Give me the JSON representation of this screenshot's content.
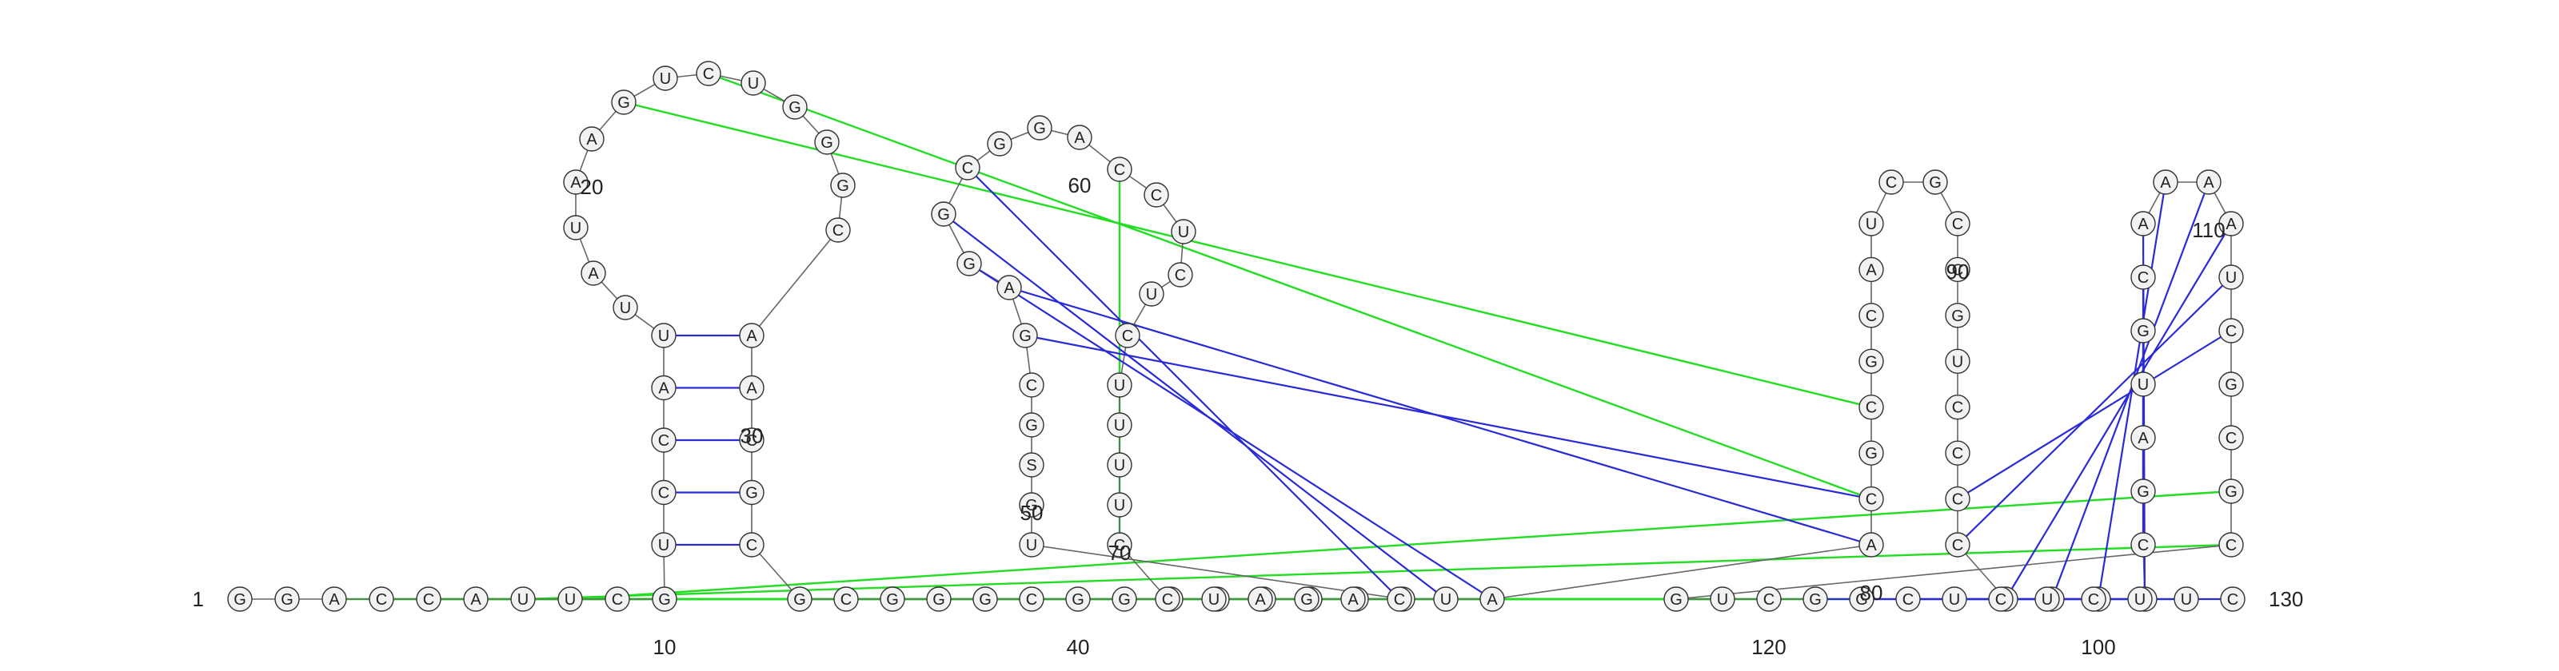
{
  "diagram": {
    "type": "rna-secondary-structure",
    "colors": {
      "nucleotide_fill": "#f2f2f2",
      "nucleotide_stroke": "#333333",
      "backbone": "#666666",
      "base_pair": "#2a2ad6",
      "pseudoknot": "#22dd22"
    },
    "sequence": [
      "G",
      "G",
      "A",
      "C",
      "C",
      "A",
      "U",
      "U",
      "C",
      "G",
      "U",
      "C",
      "C",
      "A",
      "U",
      "U",
      "A",
      "U",
      "A",
      "A",
      "G",
      "U",
      "C",
      "U",
      "G",
      "G",
      "G",
      "C",
      "A",
      "A",
      "C",
      "G",
      "C",
      "G",
      "C",
      "G",
      "G",
      "G",
      "C",
      "G",
      "G",
      "C",
      "C",
      "A",
      "G",
      "G",
      "G",
      "U",
      "G",
      "S",
      "G",
      "C",
      "G",
      "A",
      "G",
      "G",
      "C",
      "G",
      "G",
      "A",
      "C",
      "C",
      "U",
      "C",
      "U",
      "C",
      "U",
      "U",
      "U",
      "U",
      "C",
      "C",
      "U",
      "A",
      "G",
      "A",
      "C",
      "U",
      "A",
      "A",
      "C",
      "G",
      "C",
      "G",
      "C",
      "A",
      "U",
      "C",
      "G",
      "C",
      "C",
      "G",
      "U",
      "C",
      "C",
      "C",
      "C",
      "C",
      "G",
      "G",
      "C",
      "C",
      "G",
      "A",
      "U",
      "G",
      "C",
      "A",
      "A",
      "A",
      "A",
      "U",
      "C",
      "G",
      "C",
      "G",
      "C",
      "G",
      "U",
      "C",
      "G",
      "G",
      "C",
      "U",
      "C",
      "U",
      "C",
      "U",
      "U",
      "C"
    ],
    "position_labels": [
      "1",
      "10",
      "20",
      "30",
      "40",
      "50",
      "60",
      "70",
      "80",
      "90",
      "100",
      "110",
      "120",
      "130"
    ],
    "base_pairs": [
      {
        "i": 10,
        "j": 11,
        "type": "wobble"
      },
      {
        "i": 14,
        "j": 15,
        "type": "canonical"
      },
      {
        "i": 13,
        "j": 16,
        "type": "canonical"
      },
      {
        "i": 12,
        "j": 17,
        "type": "canonical"
      },
      {
        "i": 11,
        "j": 18,
        "type": "canonical"
      },
      {
        "i": 54,
        "j": 55,
        "type": "canonical"
      },
      {
        "i": 89,
        "j": 90,
        "type": "canonical"
      },
      {
        "i": 111,
        "j": 112,
        "type": "canonical"
      }
    ]
  }
}
